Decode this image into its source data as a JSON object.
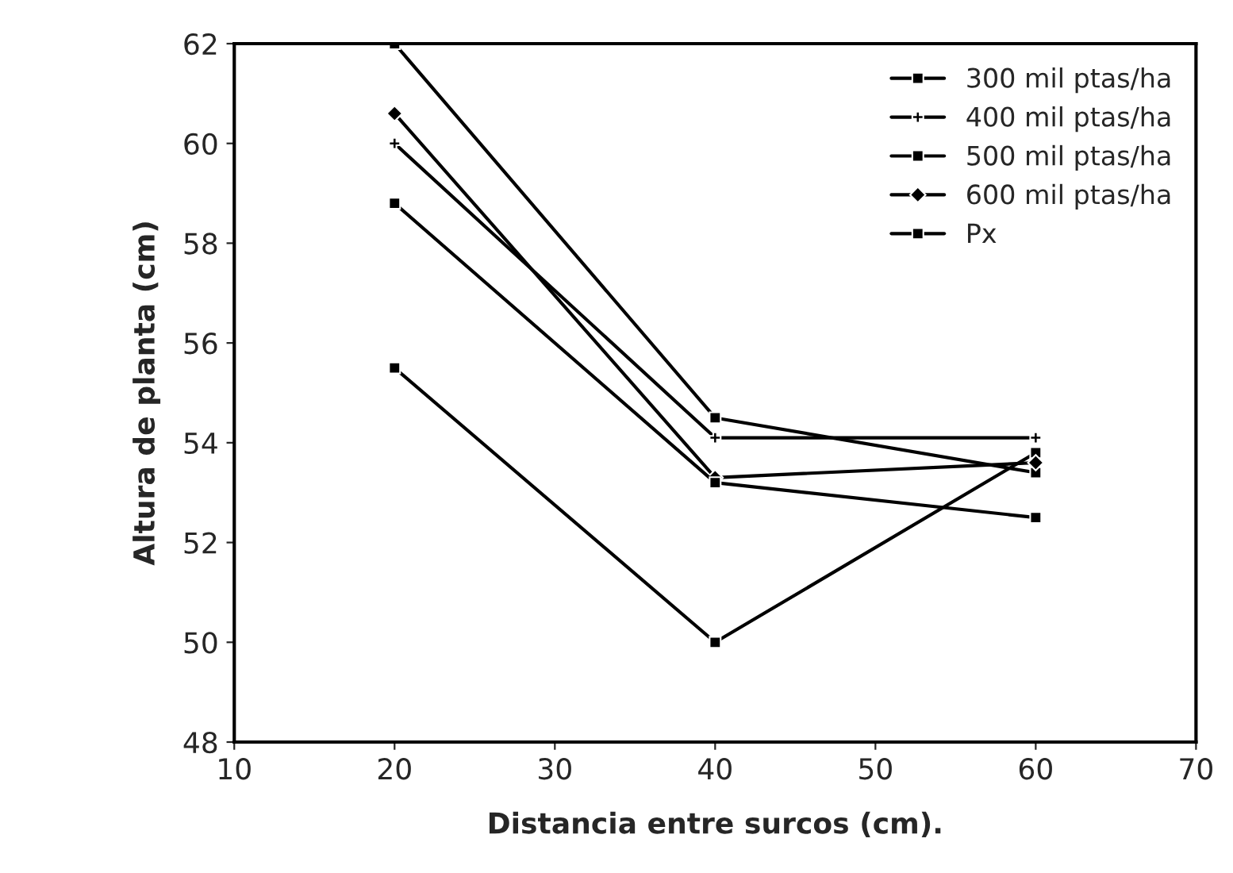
{
  "chart_data": {
    "type": "line",
    "xlabel": "Distancia entre surcos (cm).",
    "ylabel": "Altura de planta (cm)",
    "x": [
      20,
      40,
      60
    ],
    "series": [
      {
        "name": "300 mil ptas/ha",
        "color": "#000000",
        "marker": "square",
        "values": [
          55.5,
          50.0,
          53.8
        ]
      },
      {
        "name": "400 mil ptas/ha",
        "color": "#000000",
        "marker": "cross",
        "values": [
          60.0,
          54.1,
          54.1
        ]
      },
      {
        "name": "500 mil ptas/ha",
        "color": "#000000",
        "marker": "square",
        "values": [
          62.0,
          54.5,
          53.4
        ]
      },
      {
        "name": "600 mil ptas/ha",
        "color": "#000000",
        "marker": "diamond",
        "values": [
          60.6,
          53.3,
          53.6
        ]
      },
      {
        "name": "Px",
        "color": "#000000",
        "marker": "square",
        "values": [
          58.8,
          53.2,
          52.5
        ]
      }
    ],
    "xlim": [
      10,
      70
    ],
    "xticks": [
      10,
      20,
      30,
      40,
      50,
      60,
      70
    ],
    "ylim": [
      48,
      62
    ],
    "yticks": [
      48,
      50,
      52,
      54,
      56,
      58,
      60,
      62
    ],
    "grid": false,
    "legend": "top right",
    "line_style": "solid"
  }
}
